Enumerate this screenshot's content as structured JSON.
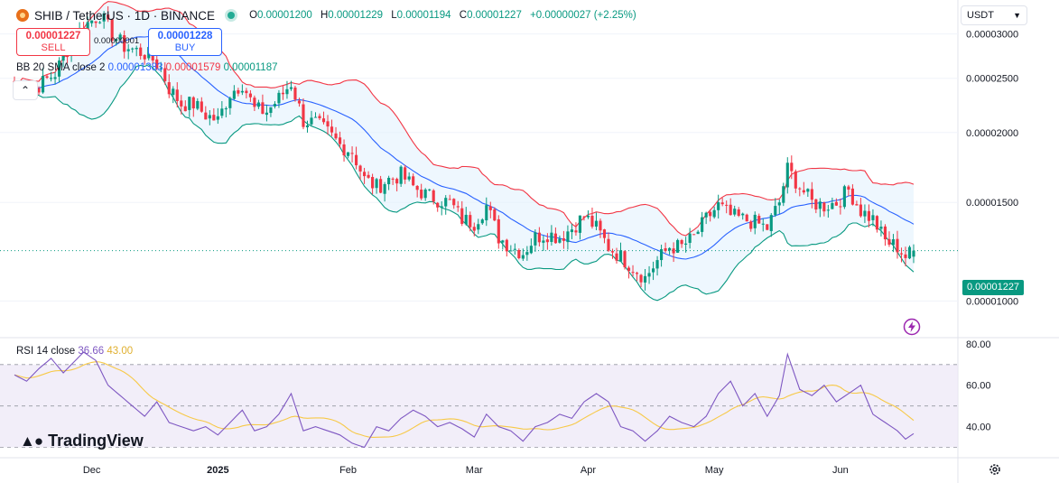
{
  "header": {
    "title": "SHIB / TetherUS · 1D · BINANCE",
    "ohlc": [
      {
        "k": "O",
        "v": "0.00001200"
      },
      {
        "k": "H",
        "v": "0.00001229"
      },
      {
        "k": "L",
        "v": "0.00001194"
      },
      {
        "k": "C",
        "v": "0.00001227"
      },
      {
        "k": "",
        "v": "+0.00000027 (+2.25%)"
      }
    ]
  },
  "trade": {
    "sell_price": "0.00001227",
    "sell_label": "SELL",
    "buy_price": "0.00001228",
    "buy_label": "BUY",
    "spread": "0.00000001"
  },
  "bb_legend": {
    "name": "BB 20 SMA close 2",
    "basis": "0.00001383",
    "upper": "0.00001579",
    "lower": "0.00001187"
  },
  "rsi_legend": {
    "name": "RSI 14 close",
    "rsi": "36.66",
    "ma": "43.00"
  },
  "currency": "USDT",
  "last_price_label": "0.00001227",
  "brand": "TradingView",
  "colors": {
    "up": "#089981",
    "down": "#f23645",
    "basis": "#2962ff",
    "upper": "#f23645",
    "lower": "#089981",
    "rsi": "#7e57c2",
    "rsi_ma": "#f7c948",
    "band_fill": "#e3f2fd",
    "rsi_band": "#ede7f6"
  },
  "chart_data": {
    "type": "candlestick",
    "price_axis": {
      "ticks": [
        "0.00001000",
        "0.00001500",
        "0.00002000",
        "0.00002500",
        "0.00003000"
      ],
      "ylim": [
        8.6e-06,
        3.45e-05
      ]
    },
    "rsi_axis": {
      "ticks": [
        "40.00",
        "60.00",
        "80.00"
      ],
      "ylim": [
        25,
        83
      ],
      "overbought": 70,
      "middle": 50,
      "oversold": 30
    },
    "x_labels": [
      "Dec",
      "2025",
      "Feb",
      "Mar",
      "Apr",
      "May",
      "Jun"
    ],
    "close_anchors": [
      [
        0,
        2.45e-05
      ],
      [
        5,
        2.4e-05
      ],
      [
        10,
        2.55e-05
      ],
      [
        14,
        2.9e-05
      ],
      [
        17,
        3.1e-05
      ],
      [
        21,
        3.25e-05
      ],
      [
        24,
        3e-05
      ],
      [
        27,
        2.85e-05
      ],
      [
        30,
        2.8e-05
      ],
      [
        33,
        2.75e-05
      ],
      [
        36,
        2.6e-05
      ],
      [
        38,
        2.4e-05
      ],
      [
        41,
        2.25e-05
      ],
      [
        44,
        2.25e-05
      ],
      [
        47,
        2.15e-05
      ],
      [
        50,
        2.1e-05
      ],
      [
        53,
        2.35e-05
      ],
      [
        56,
        2.45e-05
      ],
      [
        59,
        2.2e-05
      ],
      [
        62,
        2.18e-05
      ],
      [
        65,
        2.3e-05
      ],
      [
        68,
        2.45e-05
      ],
      [
        71,
        2.1e-05
      ],
      [
        74,
        2.08e-05
      ],
      [
        77,
        2e-05
      ],
      [
        80,
        1.9e-05
      ],
      [
        83,
        1.85e-05
      ],
      [
        86,
        1.65e-05
      ],
      [
        89,
        1.6e-05
      ],
      [
        92,
        1.65e-05
      ],
      [
        95,
        1.68e-05
      ],
      [
        98,
        1.6e-05
      ],
      [
        101,
        1.55e-05
      ],
      [
        104,
        1.52e-05
      ],
      [
        107,
        1.5e-05
      ],
      [
        110,
        1.4e-05
      ],
      [
        113,
        1.38e-05
      ],
      [
        116,
        1.48e-05
      ],
      [
        119,
        1.3e-05
      ],
      [
        122,
        1.25e-05
      ],
      [
        125,
        1.22e-05
      ],
      [
        128,
        1.3e-05
      ],
      [
        131,
        1.32e-05
      ],
      [
        134,
        1.3e-05
      ],
      [
        137,
        1.35e-05
      ],
      [
        140,
        1.42e-05
      ],
      [
        143,
        1.35e-05
      ],
      [
        146,
        1.25e-05
      ],
      [
        149,
        1.2e-05
      ],
      [
        152,
        1.15e-05
      ],
      [
        155,
        1.1e-05
      ],
      [
        158,
        1.18e-05
      ],
      [
        161,
        1.25e-05
      ],
      [
        164,
        1.25e-05
      ],
      [
        167,
        1.3e-05
      ],
      [
        170,
        1.4e-05
      ],
      [
        173,
        1.48e-05
      ],
      [
        176,
        1.42e-05
      ],
      [
        179,
        1.4e-05
      ],
      [
        182,
        1.38e-05
      ],
      [
        185,
        1.35e-05
      ],
      [
        188,
        1.5e-05
      ],
      [
        190,
        1.72e-05
      ],
      [
        193,
        1.6e-05
      ],
      [
        196,
        1.5e-05
      ],
      [
        199,
        1.48e-05
      ],
      [
        202,
        1.5e-05
      ],
      [
        205,
        1.58e-05
      ],
      [
        208,
        1.45e-05
      ],
      [
        211,
        1.4e-05
      ],
      [
        214,
        1.28e-05
      ],
      [
        217,
        1.25e-05
      ],
      [
        219,
        1.2e-05
      ],
      [
        221,
        1.23e-05
      ]
    ],
    "rsi_anchors": [
      [
        0,
        65
      ],
      [
        3,
        62
      ],
      [
        6,
        68
      ],
      [
        9,
        73
      ],
      [
        12,
        66
      ],
      [
        14,
        70
      ],
      [
        17,
        76
      ],
      [
        20,
        72
      ],
      [
        23,
        60
      ],
      [
        26,
        55
      ],
      [
        29,
        50
      ],
      [
        32,
        45
      ],
      [
        35,
        52
      ],
      [
        38,
        42
      ],
      [
        41,
        40
      ],
      [
        44,
        38
      ],
      [
        47,
        40
      ],
      [
        50,
        36
      ],
      [
        53,
        42
      ],
      [
        56,
        48
      ],
      [
        59,
        38
      ],
      [
        62,
        40
      ],
      [
        65,
        46
      ],
      [
        68,
        56
      ],
      [
        71,
        38
      ],
      [
        74,
        40
      ],
      [
        77,
        38
      ],
      [
        80,
        36
      ],
      [
        83,
        32
      ],
      [
        86,
        30
      ],
      [
        89,
        40
      ],
      [
        92,
        38
      ],
      [
        95,
        44
      ],
      [
        98,
        48
      ],
      [
        101,
        45
      ],
      [
        104,
        40
      ],
      [
        107,
        42
      ],
      [
        110,
        39
      ],
      [
        113,
        35
      ],
      [
        116,
        46
      ],
      [
        119,
        40
      ],
      [
        122,
        38
      ],
      [
        125,
        33
      ],
      [
        128,
        40
      ],
      [
        131,
        42
      ],
      [
        134,
        46
      ],
      [
        137,
        44
      ],
      [
        140,
        52
      ],
      [
        143,
        56
      ],
      [
        146,
        52
      ],
      [
        149,
        40
      ],
      [
        152,
        38
      ],
      [
        155,
        33
      ],
      [
        158,
        38
      ],
      [
        161,
        45
      ],
      [
        164,
        42
      ],
      [
        167,
        40
      ],
      [
        170,
        45
      ],
      [
        173,
        56
      ],
      [
        176,
        62
      ],
      [
        179,
        50
      ],
      [
        182,
        56
      ],
      [
        185,
        45
      ],
      [
        188,
        55
      ],
      [
        190,
        75
      ],
      [
        193,
        58
      ],
      [
        196,
        55
      ],
      [
        199,
        60
      ],
      [
        202,
        52
      ],
      [
        205,
        56
      ],
      [
        208,
        60
      ],
      [
        211,
        46
      ],
      [
        214,
        42
      ],
      [
        217,
        38
      ],
      [
        219,
        34
      ],
      [
        221,
        36.66
      ]
    ],
    "rsi_ma_last": 43.0,
    "n_bars": 222
  }
}
